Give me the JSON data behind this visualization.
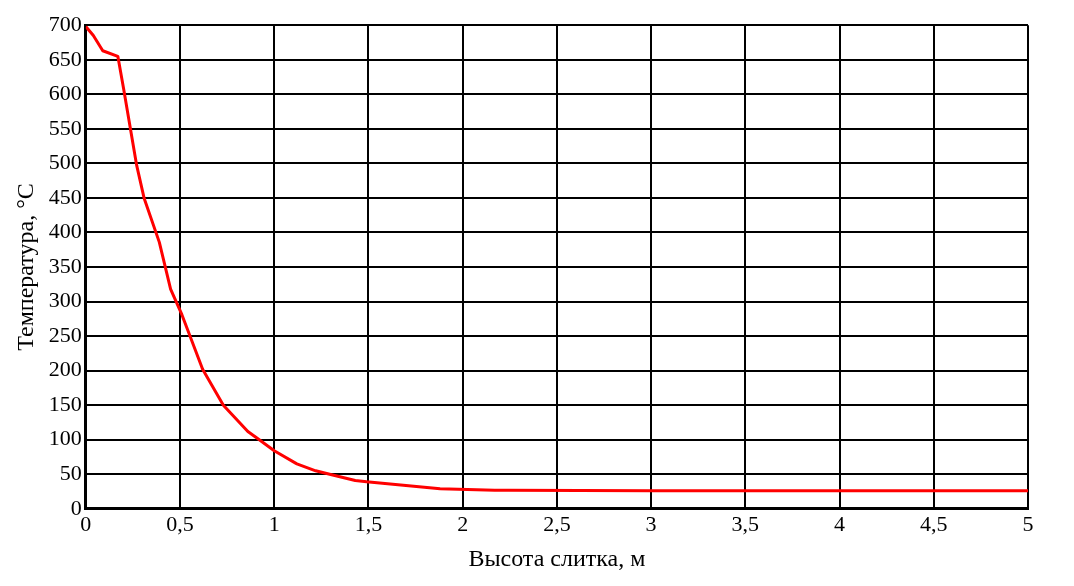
{
  "chart_data": {
    "type": "line",
    "xlabel": "Высота слитка, м",
    "ylabel": "Температура, °C",
    "series": [
      {
        "color": "#ff0000",
        "x": [
          0,
          0.04,
          0.09,
          0.17,
          0.2,
          0.27,
          0.31,
          0.39,
          0.45,
          0.51,
          0.62,
          0.73,
          0.86,
          1.0,
          1.12,
          1.22,
          1.31,
          1.43,
          1.49,
          1.88,
          2.17,
          3.0,
          4.0,
          5.0
        ],
        "values": [
          698,
          685,
          663,
          655,
          609,
          497,
          449,
          386,
          318,
          281,
          202,
          150,
          112,
          84,
          65,
          55,
          49,
          41,
          39,
          29,
          27,
          26,
          26,
          26
        ]
      }
    ],
    "xlim": [
      0,
      5
    ],
    "xticks": [
      0,
      {
        "value": 0.5,
        "label": "0,5"
      },
      1,
      {
        "value": 1.5,
        "label": "1,5"
      },
      2,
      {
        "value": 2.5,
        "label": "2,5"
      },
      3,
      {
        "value": 3.5,
        "label": "3,5"
      },
      4,
      {
        "value": 4.5,
        "label": "4,5"
      },
      5
    ],
    "ylim": [
      0,
      700
    ],
    "yticks": [
      0,
      50,
      100,
      150,
      200,
      250,
      300,
      350,
      400,
      450,
      500,
      550,
      600,
      650,
      700
    ],
    "grid": true,
    "legend": false,
    "marker": "none",
    "line_style": "solid"
  }
}
